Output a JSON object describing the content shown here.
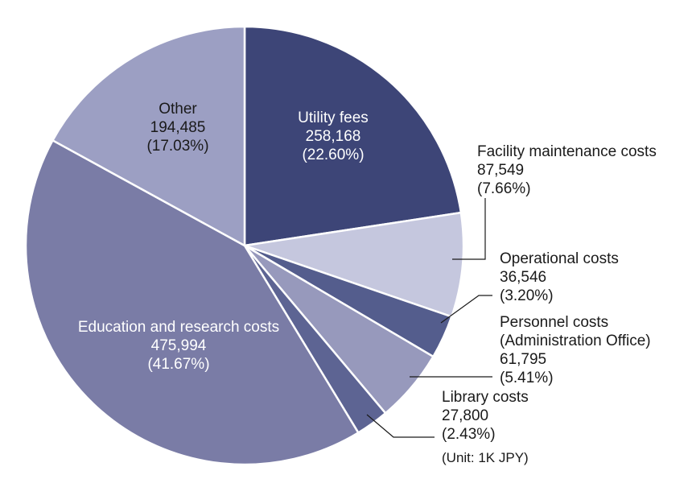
{
  "chart_data": {
    "type": "pie",
    "unit_note": "(Unit: 1K JPY)",
    "slices": [
      {
        "label": "Utility fees",
        "value": 258168,
        "value_text": "258,168",
        "percent_text": "(22.60%)",
        "color": "#3d4577"
      },
      {
        "label": "Facility maintenance costs",
        "value": 87549,
        "value_text": "87,549",
        "percent_text": "(7.66%)",
        "color": "#c5c7de"
      },
      {
        "label": "Operational costs",
        "value": 36546,
        "value_text": "36,546",
        "percent_text": "(3.20%)",
        "color": "#545d8d"
      },
      {
        "label": "Personnel costs\n(Administration Office)",
        "value": 61795,
        "value_text": "61,795",
        "percent_text": "(5.41%)",
        "color": "#9799bc"
      },
      {
        "label": "Library costs",
        "value": 27800,
        "value_text": "27,800",
        "percent_text": "(2.43%)",
        "color": "#5d6493"
      },
      {
        "label": "Education and research costs",
        "value": 475994,
        "value_text": "475,994",
        "percent_text": "(41.67%)",
        "color": "#7a7ca6"
      },
      {
        "label": "Other",
        "value": 194485,
        "value_text": "194,485",
        "percent_text": "(17.03%)",
        "color": "#9c9fc3"
      }
    ]
  }
}
